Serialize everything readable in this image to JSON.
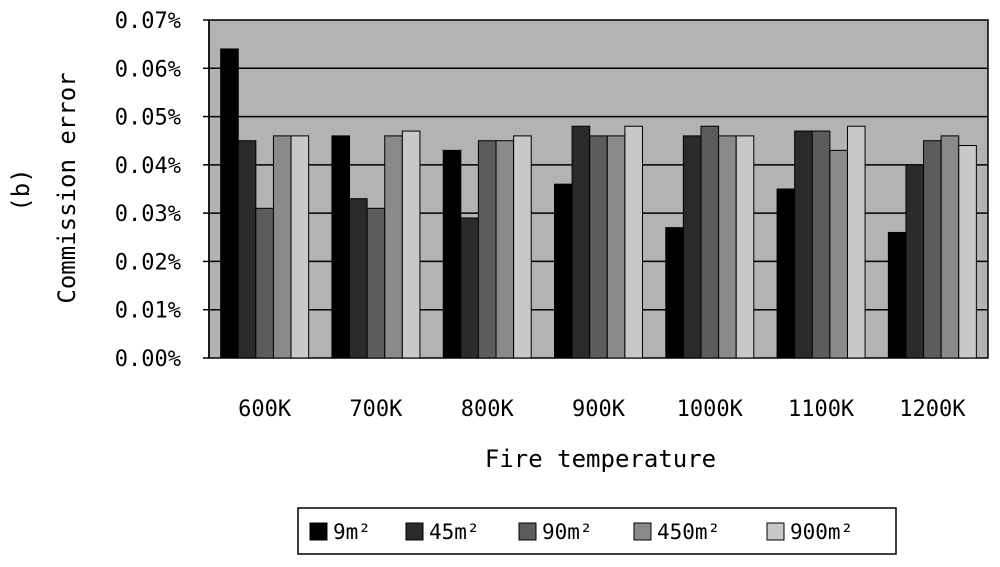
{
  "chart_data": {
    "type": "bar",
    "panel_label": "(b)",
    "xlabel": "Fire temperature",
    "ylabel": "Commission error",
    "ylim": [
      0,
      0.07
    ],
    "y_ticks": [
      "0.00%",
      "0.01%",
      "0.02%",
      "0.03%",
      "0.04%",
      "0.05%",
      "0.06%",
      "0.07%"
    ],
    "grid": "horizontal",
    "legend_position": "bottom",
    "plot_background": "#b3b3b3",
    "categories": [
      "600K",
      "700K",
      "800K",
      "900K",
      "1000K",
      "1100K",
      "1200K"
    ],
    "series": [
      {
        "name": "9m²",
        "color": "#000000",
        "values": [
          0.064,
          0.046,
          0.043,
          0.036,
          0.027,
          0.035,
          0.026
        ]
      },
      {
        "name": "45m²",
        "color": "#2b2b2b",
        "values": [
          0.045,
          0.033,
          0.029,
          0.048,
          0.046,
          0.047,
          0.04
        ]
      },
      {
        "name": "90m²",
        "color": "#5c5c5c",
        "values": [
          0.031,
          0.031,
          0.045,
          0.046,
          0.048,
          0.047,
          0.045
        ]
      },
      {
        "name": "450m²",
        "color": "#8a8a8a",
        "values": [
          0.046,
          0.046,
          0.045,
          0.046,
          0.046,
          0.043,
          0.046
        ]
      },
      {
        "name": "900m²",
        "color": "#c8c8c8",
        "values": [
          0.046,
          0.047,
          0.046,
          0.048,
          0.046,
          0.048,
          0.044
        ]
      }
    ]
  }
}
